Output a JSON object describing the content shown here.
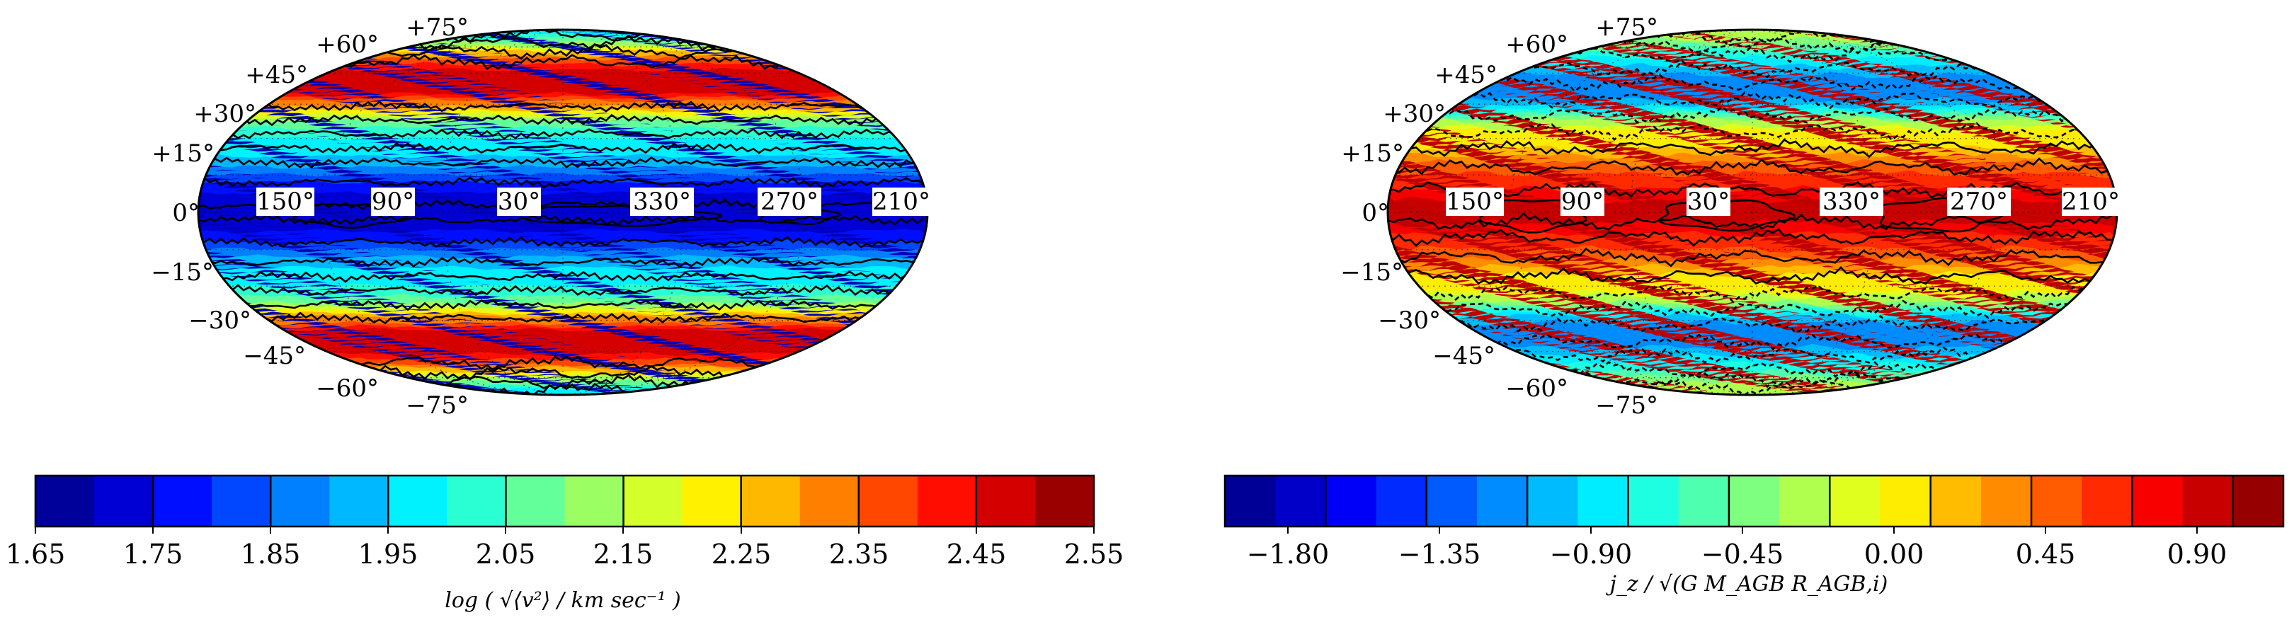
{
  "chart_data": [
    {
      "type": "heatmap",
      "projection": "mollweide",
      "panel": "left",
      "latitude_labels": [
        "+75°",
        "+60°",
        "+45°",
        "+30°",
        "+15°",
        "0°",
        "−15°",
        "−30°",
        "−45°",
        "−60°",
        "−75°"
      ],
      "longitude_labels": [
        "150°",
        "90°",
        "30°",
        "330°",
        "270°",
        "210°"
      ],
      "colorbar": {
        "ticks": [
          "1.65",
          "1.75",
          "1.85",
          "1.95",
          "2.05",
          "2.15",
          "2.25",
          "2.35",
          "2.45",
          "2.55"
        ],
        "label": "log ( √⟨v²⟩ / km sec⁻¹ )",
        "range": [
          1.65,
          2.55
        ],
        "levels": 18
      },
      "field_description": "low (~1.70) near equator, rising to ~2.50 near |b| = 60°, dropping again toward poles",
      "profile": {
        "equator": 1.7,
        "lat_30": 2.0,
        "lat_55": 2.5,
        "pole": 1.95
      }
    },
    {
      "type": "heatmap",
      "projection": "mollweide",
      "panel": "right",
      "latitude_labels": [
        "+75°",
        "+60°",
        "+45°",
        "+30°",
        "+15°",
        "0°",
        "−15°",
        "−30°",
        "−45°",
        "−60°",
        "−75°"
      ],
      "longitude_labels": [
        "150°",
        "90°",
        "30°",
        "330°",
        "270°",
        "210°"
      ],
      "colorbar": {
        "ticks": [
          "−1.80",
          "−1.35",
          "−0.90",
          "−0.45",
          "0.00",
          "0.45",
          "0.90"
        ],
        "label": "j_z / √(G M_AGB R_AGB,i)",
        "range": [
          -2.0,
          1.15
        ],
        "levels": 21
      },
      "profile": {
        "equator": 0.95,
        "lat_15": 0.55,
        "lat_30": 0.0,
        "lat_50": -1.2,
        "pole": -0.2
      }
    }
  ],
  "colors": {
    "jet_stops": [
      "#00007f",
      "#0000ff",
      "#007fff",
      "#00ffff",
      "#7fff7f",
      "#ffff00",
      "#ff7f00",
      "#ff0000",
      "#7f0000"
    ],
    "contour": "#000000",
    "label_box": "#ffffff"
  }
}
